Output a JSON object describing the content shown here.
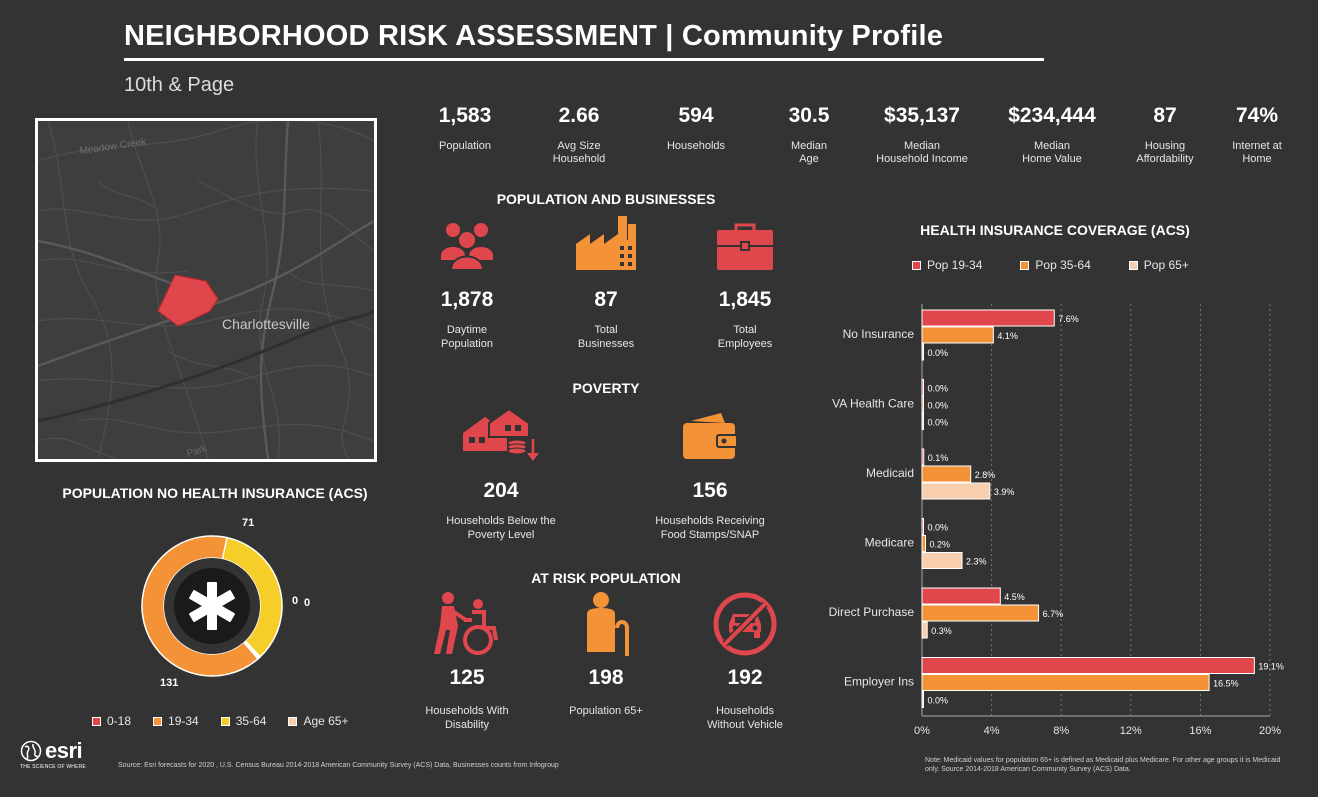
{
  "header": {
    "title": "NEIGHBORHOOD RISK ASSESSMENT | Community Profile",
    "location": "10th & Page"
  },
  "map": {
    "labels": [
      "Meadow Creek",
      "Charlottesville",
      "Park"
    ],
    "highlight_color": "#e0474c"
  },
  "stats": [
    {
      "value": "1,583",
      "label_1": "Population",
      "label_2": ""
    },
    {
      "value": "2.66",
      "label_1": "Avg Size",
      "label_2": "Household"
    },
    {
      "value": "594",
      "label_1": "Households",
      "label_2": ""
    },
    {
      "value": "30.5",
      "label_1": "Median",
      "label_2": "Age"
    },
    {
      "value": "$35,137",
      "label_1": "Median",
      "label_2": "Household Income"
    },
    {
      "value": "$234,444",
      "label_1": "Median",
      "label_2": "Home Value"
    },
    {
      "value": "87",
      "label_1": "Housing",
      "label_2": "Affordability"
    },
    {
      "value": "74%",
      "label_1": "Internet at",
      "label_2": "Home"
    }
  ],
  "population_businesses": {
    "heading": "POPULATION AND BUSINESSES",
    "items": [
      {
        "icon": "people-icon",
        "value": "1,878",
        "label_1": "Daytime",
        "label_2": "Population"
      },
      {
        "icon": "factory-icon",
        "value": "87",
        "label_1": "Total",
        "label_2": "Businesses"
      },
      {
        "icon": "briefcase-icon",
        "value": "1,845",
        "label_1": "Total",
        "label_2": "Employees"
      }
    ]
  },
  "poverty": {
    "heading": "POVERTY",
    "items": [
      {
        "icon": "house-coins-down-icon",
        "value": "204",
        "label_1": "Households Below the",
        "label_2": "Poverty Level"
      },
      {
        "icon": "wallet-icon",
        "value": "156",
        "label_1": "Households Receiving",
        "label_2": "Food Stamps/SNAP"
      }
    ]
  },
  "at_risk": {
    "heading": "AT RISK POPULATION",
    "items": [
      {
        "icon": "wheelchair-icon",
        "value": "125",
        "label_1": "Households With",
        "label_2": "Disability"
      },
      {
        "icon": "elderly-cane-icon",
        "value": "198",
        "label_1": "Population 65+",
        "label_2": ""
      },
      {
        "icon": "no-vehicle-icon",
        "value": "192",
        "label_1": "Households",
        "label_2": "Without Vehicle"
      }
    ]
  },
  "donut": {
    "heading": "POPULATION NO HEALTH INSURANCE (ACS)",
    "legend": [
      "0-18",
      "19-34",
      "35-64",
      "Age 65+"
    ],
    "colors": [
      "#e0474c",
      "#f39237",
      "#f5ce2a",
      "#f8cfae"
    ],
    "center_icon": "star-of-life-icon"
  },
  "colors": {
    "red": "#e0474c",
    "orange": "#f39237",
    "peach": "#f8cfae",
    "yellow": "#f5ce2a",
    "background": "#333333"
  },
  "chart_data": [
    {
      "type": "pie",
      "title": "POPULATION NO HEALTH INSURANCE (ACS)",
      "categories": [
        "0-18",
        "19-34",
        "35-64",
        "Age 65+"
      ],
      "values": [
        0,
        131,
        71,
        0
      ],
      "data_labels": [
        "0",
        "131",
        "71",
        "0"
      ]
    },
    {
      "type": "bar",
      "orientation": "horizontal",
      "title": "HEALTH INSURANCE COVERAGE (ACS)",
      "categories": [
        "No Insurance",
        "VA Health Care",
        "Medicaid",
        "Medicare",
        "Direct Purchase",
        "Employer Ins"
      ],
      "series": [
        {
          "name": "Pop 19-34",
          "values": [
            7.6,
            0.0,
            0.1,
            0.0,
            4.5,
            19.1
          ]
        },
        {
          "name": "Pop 35-64",
          "values": [
            4.1,
            0.0,
            2.8,
            0.2,
            6.7,
            16.5
          ]
        },
        {
          "name": "Pop 65+",
          "values": [
            0.0,
            0.0,
            3.9,
            2.3,
            0.3,
            0.0
          ]
        }
      ],
      "xlim": [
        0,
        20
      ],
      "x_ticks": [
        "0%",
        "4%",
        "8%",
        "12%",
        "16%",
        "20%"
      ],
      "grid": "vertical dashed",
      "legend": "top",
      "note": "Note: Medicaid values for population 65+ is defined as Medicaid plus Medicare. For other age groups it is Medicaid only. Source 2014-2018 American Community Survey (ACS) Data."
    }
  ],
  "footer": {
    "logo": "esri",
    "tagline": "THE SCIENCE OF WHERE",
    "source": "Source: Esri forecasts for 2020 , U.S. Census Bureau 2014-2018 American Community Survey (ACS) Data, Businesses counts from Infogroup"
  }
}
